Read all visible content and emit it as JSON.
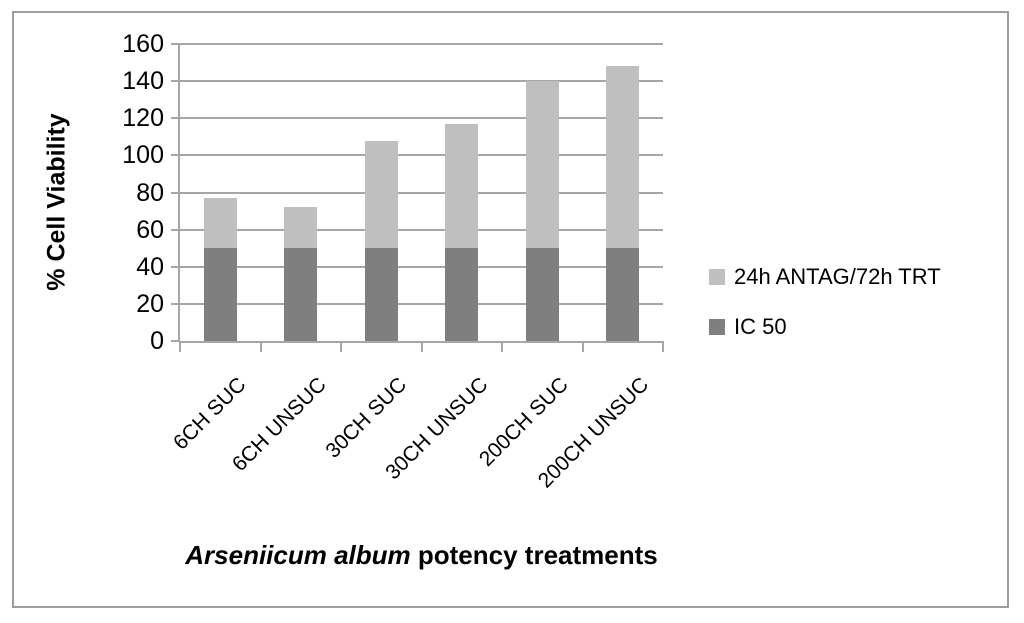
{
  "figure": {
    "background": "#ffffff",
    "border_color": "#9d9d9d"
  },
  "chart_data": {
    "type": "bar",
    "subtype": "stacked",
    "categories": [
      "6CH SUC",
      "6CH UNSUC",
      "30CH SUC",
      "30CH UNSUC",
      "200CH SUC",
      "200CH UNSUC"
    ],
    "series": [
      {
        "name": "IC 50",
        "color": "#7f7f7f",
        "values": [
          50,
          50,
          50,
          50,
          50,
          50
        ]
      },
      {
        "name": "24h ANTAG/72h TRT",
        "color": "#bfbfbf",
        "values": [
          27,
          22,
          58,
          67,
          90,
          98
        ]
      }
    ],
    "stacked_totals": [
      77,
      72,
      108,
      117,
      140,
      148
    ],
    "ylabel": "% Cell Viability",
    "xlabel_italic": "Arseniicum album",
    "xlabel_rest": " potency treatments",
    "ylim": [
      0,
      160
    ],
    "yticks": [
      0,
      20,
      40,
      60,
      80,
      100,
      120,
      140,
      160
    ],
    "grid": true,
    "gridline_color": "#a6a6a6",
    "axis_color": "#a6a6a6",
    "tick_label_color": "#000000",
    "legend_position": "right",
    "legend": [
      {
        "label": "24h ANTAG/72h TRT",
        "color": "#bfbfbf"
      },
      {
        "label": "IC 50",
        "color": "#7f7f7f"
      }
    ]
  }
}
